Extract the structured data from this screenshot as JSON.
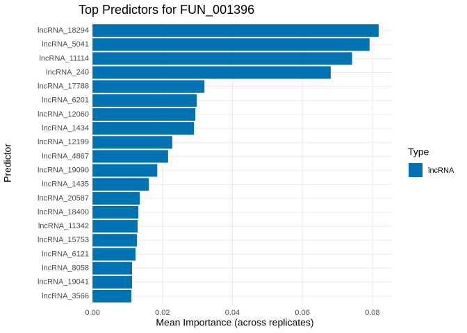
{
  "chart_data": {
    "type": "barh",
    "title": "Top Predictors for FUN_001396",
    "x_label": "Mean Importance (across replicates)",
    "y_label": "Predictor",
    "categories": [
      "lncRNA_18294",
      "lncRNA_5041",
      "lncRNA_11114",
      "lncRNA_240",
      "lncRNA_17788",
      "lncRNA_6201",
      "lncRNA_12060",
      "lncRNA_1434",
      "lncRNA_12199",
      "lncRNA_4867",
      "lncRNA_19090",
      "lncRNA_1435",
      "lncRNA_20587",
      "lncRNA_18400",
      "lncRNA_11342",
      "lncRNA_15753",
      "lncRNA_6121",
      "lncRNA_8058",
      "lncRNA_19041",
      "lncRNA_3566"
    ],
    "series": [
      {
        "name": "lncRNA",
        "color": "#0072b2",
        "values": [
          0.0818,
          0.0792,
          0.0742,
          0.0681,
          0.032,
          0.0298,
          0.0294,
          0.029,
          0.0228,
          0.0216,
          0.0185,
          0.0161,
          0.0135,
          0.0131,
          0.0129,
          0.0127,
          0.0123,
          0.0113,
          0.0113,
          0.0111
        ]
      }
    ],
    "legend_title": "Type",
    "xlim": [
      -0.0042,
      0.0858
    ],
    "xticks": [
      {
        "value": 0,
        "label": "0.00"
      },
      0.02,
      0.04,
      0.06,
      0.08
    ],
    "grid": true
  }
}
